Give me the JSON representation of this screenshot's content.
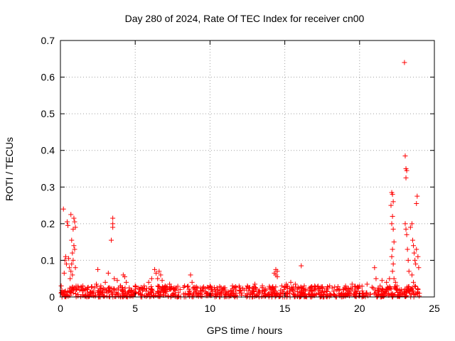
{
  "chart_data": {
    "type": "scatter",
    "title": "Day 280 of 2024, Rate Of TEC Index for receiver cn00",
    "xlabel": "GPS time / hours",
    "ylabel": "ROTI / TECUs",
    "xlim": [
      0,
      25
    ],
    "ylim": [
      0,
      0.7
    ],
    "xticks": [
      0,
      5,
      10,
      15,
      20,
      25
    ],
    "yticks": [
      0,
      0.1,
      0.2,
      0.3,
      0.4,
      0.5,
      0.6,
      0.7
    ],
    "xtick_labels": [
      "0",
      "5",
      "10",
      "15",
      "20",
      "25"
    ],
    "ytick_labels": [
      "0",
      "0.1",
      "0.2",
      "0.3",
      "0.4",
      "0.5",
      "0.6",
      "0.7"
    ],
    "grid": true,
    "marker": "+",
    "color": "#ff0000",
    "points": [
      [
        0.05,
        0.03
      ],
      [
        0.1,
        0.018
      ],
      [
        0.15,
        0.01
      ],
      [
        0.2,
        0.24
      ],
      [
        0.25,
        0.065
      ],
      [
        0.3,
        0.1
      ],
      [
        0.35,
        0.11
      ],
      [
        0.4,
        0.09
      ],
      [
        0.45,
        0.205
      ],
      [
        0.5,
        0.195
      ],
      [
        0.55,
        0.105
      ],
      [
        0.6,
        0.08
      ],
      [
        0.7,
        0.225
      ],
      [
        0.75,
        0.155
      ],
      [
        0.8,
        0.06
      ],
      [
        0.85,
        0.1
      ],
      [
        0.9,
        0.215
      ],
      [
        0.95,
        0.205
      ],
      [
        1.0,
        0.19
      ],
      [
        0.85,
        0.185
      ],
      [
        0.9,
        0.14
      ],
      [
        0.95,
        0.13
      ],
      [
        1.0,
        0.08
      ],
      [
        0.8,
        0.12
      ],
      [
        0.75,
        0.09
      ],
      [
        0.7,
        0.07
      ],
      [
        0.65,
        0.05
      ],
      [
        1.2,
        0.025
      ],
      [
        1.5,
        0.03
      ],
      [
        1.8,
        0.02
      ],
      [
        2.1,
        0.028
      ],
      [
        2.4,
        0.035
      ],
      [
        2.5,
        0.075
      ],
      [
        2.7,
        0.03
      ],
      [
        3.0,
        0.04
      ],
      [
        3.2,
        0.065
      ],
      [
        3.4,
        0.155
      ],
      [
        3.5,
        0.19
      ],
      [
        3.5,
        0.215
      ],
      [
        3.5,
        0.2
      ],
      [
        3.6,
        0.05
      ],
      [
        3.8,
        0.045
      ],
      [
        4.0,
        0.03
      ],
      [
        4.2,
        0.06
      ],
      [
        4.3,
        0.055
      ],
      [
        4.4,
        0.04
      ],
      [
        4.6,
        0.025
      ],
      [
        5.0,
        0.03
      ],
      [
        5.3,
        0.02
      ],
      [
        5.6,
        0.03
      ],
      [
        5.9,
        0.04
      ],
      [
        6.1,
        0.05
      ],
      [
        6.3,
        0.075
      ],
      [
        6.4,
        0.065
      ],
      [
        6.5,
        0.05
      ],
      [
        6.6,
        0.07
      ],
      [
        6.7,
        0.06
      ],
      [
        6.8,
        0.045
      ],
      [
        7.0,
        0.03
      ],
      [
        7.3,
        0.035
      ],
      [
        7.6,
        0.025
      ],
      [
        8.0,
        0.02
      ],
      [
        8.3,
        0.03
      ],
      [
        8.7,
        0.06
      ],
      [
        8.8,
        0.04
      ],
      [
        9.0,
        0.02
      ],
      [
        9.5,
        0.025
      ],
      [
        10.0,
        0.03
      ],
      [
        10.5,
        0.02
      ],
      [
        11.0,
        0.025
      ],
      [
        11.5,
        0.03
      ],
      [
        12.0,
        0.025
      ],
      [
        12.5,
        0.03
      ],
      [
        13.0,
        0.035
      ],
      [
        13.5,
        0.03
      ],
      [
        14.0,
        0.025
      ],
      [
        14.3,
        0.065
      ],
      [
        14.4,
        0.075
      ],
      [
        14.5,
        0.07
      ],
      [
        14.4,
        0.06
      ],
      [
        14.5,
        0.055
      ],
      [
        14.8,
        0.03
      ],
      [
        15.1,
        0.035
      ],
      [
        15.4,
        0.04
      ],
      [
        15.7,
        0.035
      ],
      [
        16.1,
        0.085
      ],
      [
        16.3,
        0.03
      ],
      [
        16.7,
        0.025
      ],
      [
        17.0,
        0.03
      ],
      [
        17.5,
        0.025
      ],
      [
        18.0,
        0.03
      ],
      [
        18.5,
        0.02
      ],
      [
        19.0,
        0.025
      ],
      [
        19.5,
        0.035
      ],
      [
        20.0,
        0.03
      ],
      [
        20.5,
        0.035
      ],
      [
        21.0,
        0.08
      ],
      [
        21.1,
        0.05
      ],
      [
        21.5,
        0.045
      ],
      [
        21.8,
        0.04
      ],
      [
        22.0,
        0.05
      ],
      [
        22.1,
        0.25
      ],
      [
        22.15,
        0.285
      ],
      [
        22.2,
        0.28
      ],
      [
        22.25,
        0.26
      ],
      [
        22.2,
        0.22
      ],
      [
        22.15,
        0.2
      ],
      [
        22.25,
        0.185
      ],
      [
        22.3,
        0.15
      ],
      [
        22.2,
        0.13
      ],
      [
        22.15,
        0.11
      ],
      [
        22.25,
        0.09
      ],
      [
        22.2,
        0.07
      ],
      [
        22.3,
        0.05
      ],
      [
        22.4,
        0.04
      ],
      [
        22.5,
        0.03
      ],
      [
        23.0,
        0.64
      ],
      [
        23.05,
        0.385
      ],
      [
        23.1,
        0.35
      ],
      [
        23.15,
        0.345
      ],
      [
        23.1,
        0.325
      ],
      [
        23.05,
        0.2
      ],
      [
        23.1,
        0.185
      ],
      [
        23.15,
        0.17
      ],
      [
        23.2,
        0.13
      ],
      [
        23.25,
        0.1
      ],
      [
        23.3,
        0.07
      ],
      [
        23.4,
        0.19
      ],
      [
        23.5,
        0.2
      ],
      [
        23.55,
        0.155
      ],
      [
        23.6,
        0.14
      ],
      [
        23.65,
        0.12
      ],
      [
        23.7,
        0.1
      ],
      [
        23.75,
        0.09
      ],
      [
        23.8,
        0.13
      ],
      [
        23.85,
        0.275
      ],
      [
        23.8,
        0.255
      ],
      [
        23.9,
        0.11
      ],
      [
        23.95,
        0.08
      ],
      [
        23.5,
        0.06
      ],
      [
        23.6,
        0.04
      ],
      [
        23.7,
        0.03
      ],
      [
        23.9,
        0.02
      ],
      [
        24.0,
        0.01
      ]
    ],
    "baseline_band": {
      "xrange": [
        0,
        24
      ],
      "yrange": [
        0,
        0.03
      ],
      "density": 900
    }
  }
}
